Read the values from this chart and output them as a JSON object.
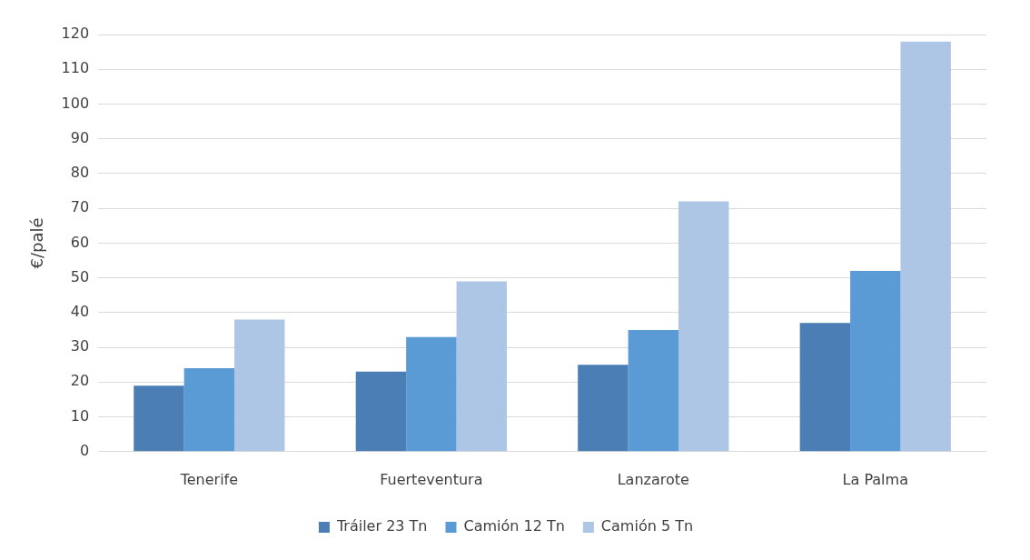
{
  "chart_data": {
    "type": "bar",
    "ylabel": "€/palé",
    "categories": [
      "Tenerife",
      "Fuerteventura",
      "Lanzarote",
      "La Palma"
    ],
    "series": [
      {
        "name": "Tráiler 23 Tn",
        "color": "#4a7eb4",
        "values": [
          19,
          23,
          25,
          37
        ]
      },
      {
        "name": "Camión 12 Tn",
        "color": "#5b9bd5",
        "values": [
          24,
          33,
          35,
          52
        ]
      },
      {
        "name": "Camión 5 Tn",
        "color": "#adc6e5",
        "values": [
          38,
          49,
          72,
          118
        ]
      }
    ],
    "ylim": [
      0,
      120
    ],
    "yticks": [
      0,
      10,
      20,
      30,
      40,
      50,
      60,
      70,
      80,
      90,
      100,
      110,
      120
    ],
    "grid": "y",
    "legend": "bottom"
  }
}
